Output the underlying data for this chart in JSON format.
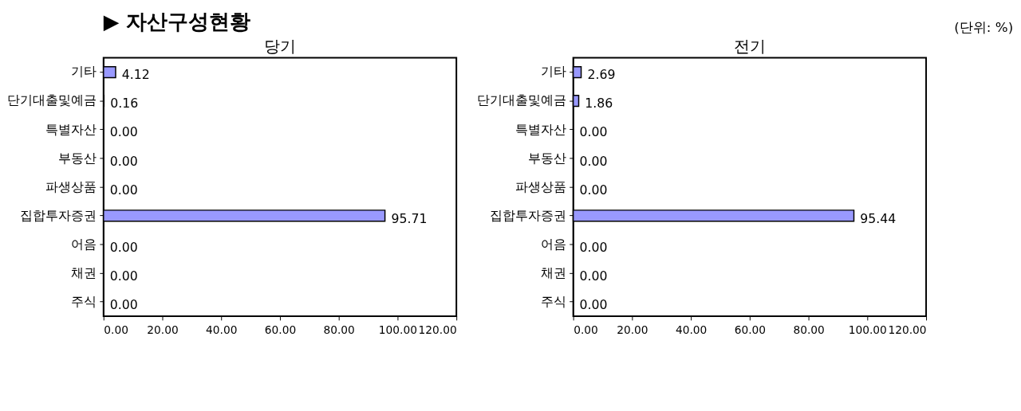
{
  "chart_data": [
    {
      "type": "bar",
      "orientation": "horizontal",
      "title": "당기",
      "annotations": [
        "▶ 자산구성현황",
        "(단위: %)"
      ],
      "categories": [
        "기타",
        "단기대출및예금",
        "특별자산",
        "부동산",
        "파생상품",
        "집합투자증권",
        "어음",
        "채권",
        "주식"
      ],
      "values": [
        4.12,
        0.16,
        0,
        0,
        0,
        95.71,
        0,
        0,
        0
      ],
      "value_labels": [
        "4.12",
        "0.16",
        "0.00",
        "0.00",
        "0.00",
        "95.71",
        "0.00",
        "0.00",
        "0.00"
      ],
      "color": "#9999ff",
      "xlim": [
        0,
        120
      ],
      "xticks": [
        {
          "value": 0,
          "label": "0.00"
        },
        {
          "value": 20,
          "label": "20.00"
        },
        {
          "value": 40,
          "label": "40.00"
        },
        {
          "value": 60,
          "label": "60.00"
        },
        {
          "value": 80,
          "label": "80.00"
        },
        {
          "value": 100,
          "label": "100.00"
        },
        {
          "value": 120,
          "label": "120.00"
        }
      ],
      "grid": false
    },
    {
      "type": "bar",
      "orientation": "horizontal",
      "title": "전기",
      "categories": [
        "기타",
        "단기대출및예금",
        "특별자산",
        "부동산",
        "파생상품",
        "집합투자증권",
        "어음",
        "채권",
        "주식"
      ],
      "values": [
        2.69,
        1.86,
        0,
        0,
        0,
        95.44,
        0,
        0,
        0
      ],
      "value_labels": [
        "2.69",
        "1.86",
        "0.00",
        "0.00",
        "0.00",
        "95.44",
        "0.00",
        "0.00",
        "0.00"
      ],
      "color": "#9999ff",
      "xlim": [
        0,
        120
      ],
      "xticks": [
        {
          "value": 0,
          "label": "0.00"
        },
        {
          "value": 20,
          "label": "20.00"
        },
        {
          "value": 40,
          "label": "40.00"
        },
        {
          "value": 60,
          "label": "60.00"
        },
        {
          "value": 80,
          "label": "80.00"
        },
        {
          "value": 100,
          "label": "100.00"
        },
        {
          "value": 120,
          "label": "120.00"
        }
      ],
      "grid": false
    }
  ]
}
